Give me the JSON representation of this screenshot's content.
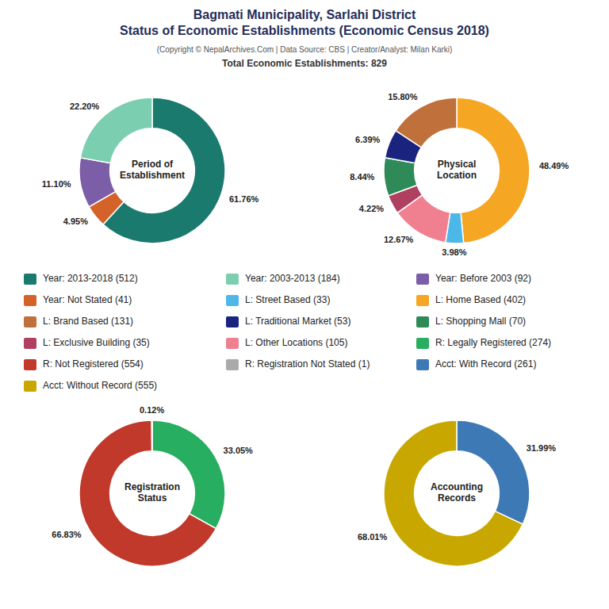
{
  "title": "Bagmati Municipality, Sarlahi District\nStatus of Economic Establishments (Economic Census 2018)",
  "subtitle": "(Copyright © NepalArchives.Com | Data Source: CBS | Creator/Analyst: Milan Karki)",
  "annotations": [
    "Total Economic Establishments: 829"
  ],
  "chart_data": [
    {
      "type": "pie",
      "title": "Period of\nEstablishment",
      "categories": [
        "Year: 2013-2018 (512)",
        "Year: Not Stated (41)",
        "Year: Before 2003 (92)",
        "Year: 2003-2013 (184)"
      ],
      "values": [
        61.76,
        4.95,
        11.1,
        22.2
      ],
      "value_labels": [
        "61.76%",
        "4.95%",
        "11.10%",
        "22.20%"
      ],
      "colors": [
        "#1a7a6e",
        "#d4632a",
        "#7b5ea7",
        "#7bcfb0"
      ],
      "data_labels": true
    },
    {
      "type": "pie",
      "title": "Physical\nLocation",
      "categories": [
        "L: Home Based (402)",
        "L: Street Based (33)",
        "L: Other Locations (105)",
        "L: Exclusive Building (35)",
        "L: Shopping Mall (70)",
        "L: Traditional Market (53)",
        "L: Brand Based (131)"
      ],
      "values": [
        48.49,
        3.98,
        12.67,
        4.22,
        8.44,
        6.39,
        15.8
      ],
      "value_labels": [
        "48.49%",
        "3.98%",
        "12.67%",
        "4.22%",
        "8.44%",
        "6.39%",
        "15.80%"
      ],
      "colors": [
        "#f5a623",
        "#4db8e8",
        "#f08090",
        "#b04060",
        "#2e8b57",
        "#1a237e",
        "#c0703a"
      ],
      "data_labels": true
    },
    {
      "type": "pie",
      "title": "Registration\nStatus",
      "categories": [
        "R: Legally Registered (274)",
        "R: Not Registered (554)",
        "R: Registration Not Stated (1)"
      ],
      "values": [
        33.05,
        66.83,
        0.12
      ],
      "value_labels": [
        "33.05%",
        "66.83%",
        "0.12%"
      ],
      "colors": [
        "#27ae60",
        "#c0392b",
        "#aaaaaa"
      ],
      "data_labels": true
    },
    {
      "type": "pie",
      "title": "Accounting\nRecords",
      "categories": [
        "Acct: With Record (261)",
        "Acct: Without Record (555)"
      ],
      "values": [
        31.99,
        68.01
      ],
      "value_labels": [
        "31.99%",
        "68.01%"
      ],
      "colors": [
        "#3d7ab5",
        "#c8a800"
      ],
      "data_labels": true
    }
  ]
}
